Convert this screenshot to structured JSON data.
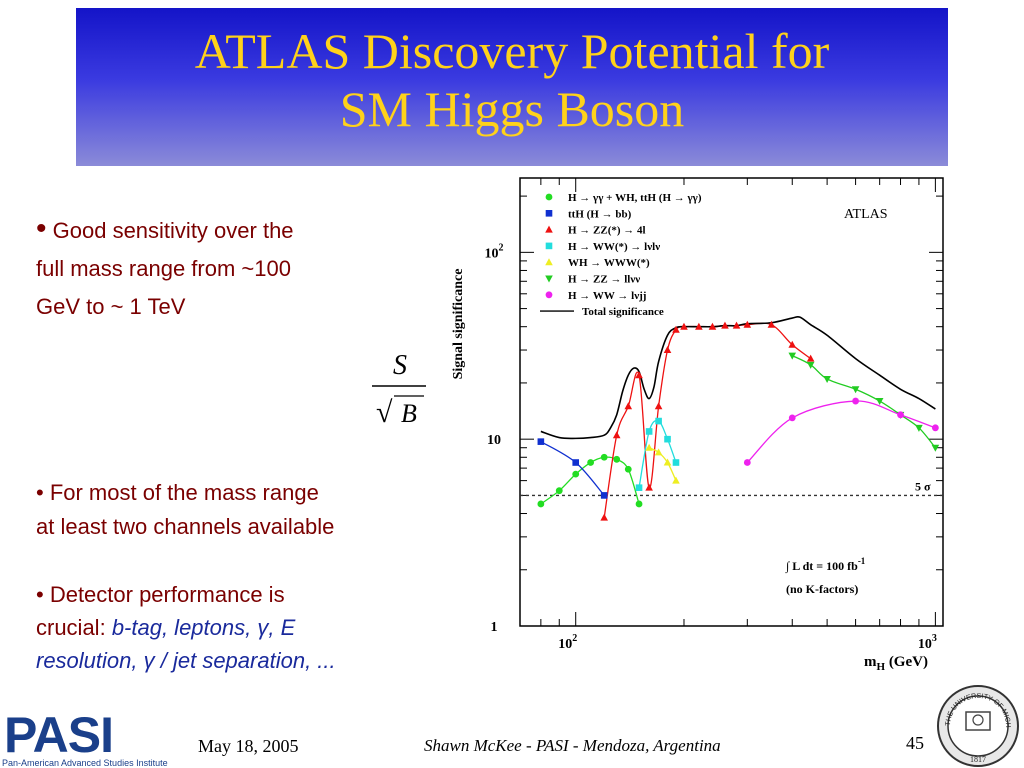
{
  "slide": {
    "title_line1": "ATLAS Discovery Potential for",
    "title_line2": "SM Higgs Boson",
    "bullet1_dot": "•",
    "bullet1_line1": "Good sensitivity over the",
    "bullet1_line2": "full mass range from ~100",
    "bullet1_line3": "GeV to ~ 1 TeV",
    "formula_num": "S",
    "formula_den": "B",
    "formula_sqrt": "√",
    "bullet2_line1": "• For most of the mass range",
    "bullet2_line2": "at least two channels available",
    "bullet3_line1": "• Detector performance is",
    "bullet3_prefix": "crucial:",
    "bullet3_em1": "b-tag, leptons,",
    "bullet3_gamma1": "γ",
    "bullet3_em2": ", E",
    "bullet3_em3": "resolution,",
    "bullet3_gamma2": "γ",
    "bullet3_em4": " / jet separation, ...",
    "footer_date": "May 18, 2005",
    "footer_author": "Shawn McKee - PASI - Mendoza, Argentina",
    "footer_page": "45",
    "pasi_word": "PASI",
    "pasi_sub": "Pan-American Advanced Studies Institute",
    "seal_text": "THE UNIVERSITY OF MICHIGAN",
    "seal_year": "1817"
  },
  "colors": {
    "title_text": "#ffd21a",
    "bullet_text": "#7a0000",
    "em_text": "#1a2a9c",
    "pasi_blue": "#1a3f8a"
  },
  "chart_data": {
    "type": "line",
    "ylabel": "Signal significance",
    "xlabel_m": "m",
    "xlabel_sub": "H",
    "xlabel_unit": " (GeV)",
    "watermark": "ATLAS",
    "x_scale": "log",
    "y_scale": "log",
    "xlim": [
      70,
      1050
    ],
    "ylim": [
      1,
      250
    ],
    "x_ticks": [
      {
        "value": 100,
        "base": "10",
        "exp": "2"
      },
      {
        "value": 1000,
        "base": "10",
        "exp": "3"
      }
    ],
    "y_ticks": [
      {
        "value": 1,
        "base": "1",
        "exp": ""
      },
      {
        "value": 10,
        "base": "10",
        "exp": ""
      },
      {
        "value": 100,
        "base": "10",
        "exp": "2"
      }
    ],
    "threshold": {
      "value": 5,
      "label": "5 σ"
    },
    "luminosity_label": "∫ L dt = 100 fb",
    "luminosity_exp": "-1",
    "kfactor_label": "(no K-factors)",
    "legend_position": "top-left",
    "series": [
      {
        "name": "H → γγ + WH, ttH (H → γγ)",
        "color": "#22dd22",
        "marker": "circle",
        "x": [
          80,
          90,
          100,
          110,
          120,
          130,
          140,
          150
        ],
        "y": [
          4.5,
          5.3,
          6.5,
          7.5,
          8.0,
          7.8,
          6.9,
          4.5
        ]
      },
      {
        "name": "ttH (H → bb)",
        "color": "#1030d0",
        "marker": "square",
        "x": [
          80,
          100,
          120
        ],
        "y": [
          9.7,
          7.5,
          5.0
        ]
      },
      {
        "name": "H → ZZ(*) → 4l",
        "color": "#ee1111",
        "marker": "triangle-up",
        "x": [
          120,
          130,
          140,
          150,
          160,
          170,
          180,
          190,
          200,
          220,
          240,
          260,
          280,
          300,
          350,
          400,
          450
        ],
        "y": [
          3.8,
          10.5,
          15.0,
          22.0,
          5.5,
          15.0,
          30.0,
          38.5,
          40.0,
          40.0,
          40.0,
          40.5,
          40.5,
          41.0,
          41.0,
          32.0,
          27.0
        ]
      },
      {
        "name": "H → WW(*) → lνlν",
        "color": "#22dddd",
        "marker": "square",
        "x": [
          150,
          160,
          170,
          180,
          190
        ],
        "y": [
          5.5,
          11.0,
          12.5,
          10.0,
          7.5
        ]
      },
      {
        "name": "WH → WWW(*)",
        "color": "#eeee22",
        "marker": "triangle-up",
        "x": [
          160,
          170,
          180,
          190
        ],
        "y": [
          9.0,
          8.5,
          7.5,
          6.0
        ]
      },
      {
        "name": "H → ZZ → llνν",
        "color": "#22cc22",
        "marker": "triangle-down",
        "x": [
          400,
          450,
          500,
          600,
          700,
          800,
          900,
          1000
        ],
        "y": [
          28.0,
          25.0,
          21.0,
          18.5,
          16.0,
          13.5,
          11.5,
          9.0
        ]
      },
      {
        "name": "H → WW → lνjj",
        "color": "#ee22ee",
        "marker": "circle",
        "x": [
          300,
          400,
          600,
          800,
          1000
        ],
        "y": [
          7.5,
          13.0,
          16.0,
          13.5,
          11.5
        ]
      },
      {
        "name": "Total significance",
        "color": "#000000",
        "marker": "line",
        "x": [
          80,
          90,
          100,
          110,
          120,
          125,
          130,
          135,
          140,
          145,
          150,
          155,
          160,
          165,
          170,
          180,
          190,
          200,
          220,
          240,
          260,
          280,
          300,
          350,
          400,
          420,
          450,
          500,
          600,
          700,
          800,
          900,
          1000
        ],
        "y": [
          11.0,
          10.2,
          10.1,
          10.2,
          10.5,
          11.5,
          13.5,
          18.0,
          22.0,
          24.0,
          23.0,
          18.5,
          16.5,
          19.0,
          26.0,
          36.0,
          39.5,
          40.0,
          40.0,
          40.0,
          40.5,
          40.5,
          41.5,
          42.0,
          44.5,
          45.0,
          41.0,
          36.0,
          27.0,
          22.0,
          18.5,
          16.5,
          14.5
        ]
      }
    ]
  }
}
